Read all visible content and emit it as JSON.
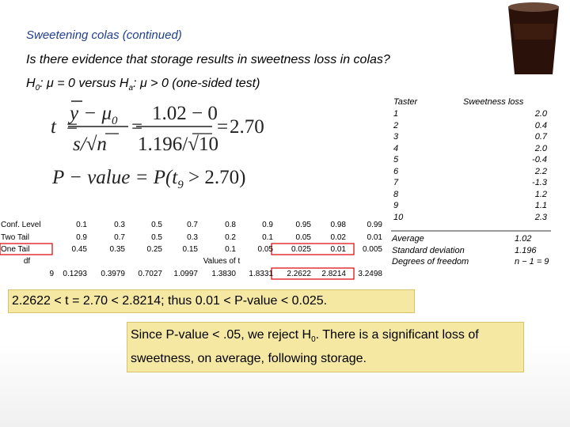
{
  "title": "Sweetening colas (continued)",
  "question": "Is there evidence that storage results in sweetness loss in colas?",
  "hypothesis": [
    "H",
    "0",
    ": μ = 0 versus H",
    "a",
    ": μ > 0 (one-sided test)"
  ],
  "t_formula": {
    "lhs": "t",
    "equals": "=",
    "num1": "y − μ",
    "num1_sub": "0",
    "den1_s": "s/",
    "den1_root": "n",
    "num2": "1.02 − 0",
    "den2_s": "1.196/",
    "den2_root": "10",
    "result": "2.70",
    "root": "√"
  },
  "p_formula": {
    "lhs": "P − value = P(t",
    "sub": "9",
    "rhs": " > 2.70)"
  },
  "t_table": {
    "rows": [
      [
        "Conf. Level",
        "0.1",
        "0.3",
        "0.5",
        "0.7",
        "0.8",
        "0.9",
        "0.95",
        "0.98",
        "0.99"
      ],
      [
        "Two Tail",
        "0.9",
        "0.7",
        "0.5",
        "0.3",
        "0.2",
        "0.1",
        "0.05",
        "0.02",
        "0.01"
      ],
      [
        "One Tail",
        "0.45",
        "0.35",
        "0.25",
        "0.15",
        "0.1",
        "0.05",
        "0.025",
        "0.01",
        "0.005"
      ]
    ],
    "df_label": "df",
    "values_label": "Values of t",
    "df_row": [
      "9",
      "0.1293",
      "0.3979",
      "0.7027",
      "1.0997",
      "1.3830",
      "1.8331",
      "2.2622",
      "2.8214",
      "3.2498"
    ]
  },
  "taster_table": {
    "headers": [
      "Taster",
      "Sweetness loss"
    ],
    "rows": [
      [
        "1",
        "2.0"
      ],
      [
        "2",
        "0.4"
      ],
      [
        "3",
        "0.7"
      ],
      [
        "4",
        "2.0"
      ],
      [
        "5",
        "-0.4"
      ],
      [
        "6",
        "2.2"
      ],
      [
        "7",
        "-1.3"
      ],
      [
        "8",
        "1.2"
      ],
      [
        "9",
        "1.1"
      ],
      [
        "10",
        "2.3"
      ]
    ],
    "summary": [
      [
        "Average",
        "1.02"
      ],
      [
        "Standard deviation",
        "1.196"
      ],
      [
        "Degrees of freedom",
        "n − 1 = 9"
      ]
    ]
  },
  "conclusion_range": "2.2622 < t = 2.70 < 2.8214; thus 0.01 < P-value < 0.025.",
  "conclusion": [
    "Since P-value < .05, we reject H",
    "0",
    ". There is a significant loss of  sweetness, on average, following storage."
  ]
}
